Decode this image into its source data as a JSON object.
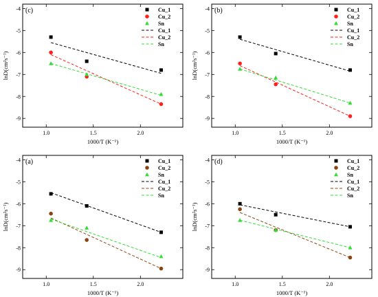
{
  "colors": {
    "Cu_1": "#000000",
    "Cu_2": "#ff1f1f",
    "Cu_2_alt": "#8b4513",
    "Sn": "#33dd33"
  },
  "chart_data": [
    {
      "type": "scatter",
      "panel_label": "(c)",
      "xlabel": "1000/T (K⁻¹)",
      "ylabel": "lnD(cm²s⁻¹)",
      "xlim": [
        0.75,
        2.45
      ],
      "ylim": [
        -9.4,
        -3.8
      ],
      "x_ticks": [
        "1.0",
        "1.5",
        "2.0"
      ],
      "y_ticks": [
        "-4",
        "-5",
        "-6",
        "-7",
        "-8",
        "-9"
      ],
      "legend": [
        "Cu_1",
        "Cu_2",
        "Sn",
        "Cu_1",
        "Cu_2",
        "Sn"
      ],
      "legend_position": "top-right",
      "series": [
        {
          "name": "Cu_1",
          "marker": "square",
          "color_key": "Cu_1",
          "x": [
            1.05,
            1.43,
            2.22
          ],
          "y": [
            -5.3,
            -6.4,
            -6.8
          ],
          "fit": [
            [
              1.05,
              -5.55
            ],
            [
              2.22,
              -6.95
            ]
          ]
        },
        {
          "name": "Cu_2",
          "marker": "circle",
          "color_key": "Cu_2",
          "x": [
            1.05,
            1.43,
            2.22
          ],
          "y": [
            -6.0,
            -7.1,
            -8.35
          ],
          "fit": [
            [
              1.05,
              -6.1
            ],
            [
              2.22,
              -8.35
            ]
          ]
        },
        {
          "name": "Sn",
          "marker": "triangle",
          "color_key": "Sn",
          "x": [
            1.05,
            1.43,
            2.22
          ],
          "y": [
            -6.5,
            -7.0,
            -7.9
          ],
          "fit": [
            [
              1.05,
              -6.5
            ],
            [
              2.22,
              -7.95
            ]
          ]
        }
      ]
    },
    {
      "type": "scatter",
      "panel_label": "(b)",
      "xlabel": "1000/T (K⁻¹)",
      "ylabel": "lnD(cm²s⁻¹)",
      "xlim": [
        0.75,
        2.45
      ],
      "ylim": [
        -9.4,
        -3.8
      ],
      "x_ticks": [
        "1.0",
        "1.5",
        "2.0"
      ],
      "y_ticks": [
        "-4",
        "-5",
        "-6",
        "-7",
        "-8",
        "-9"
      ],
      "legend": [
        "Cu_1",
        "Cu_2",
        "Sn",
        "Cu_1",
        "Cu_2",
        "Sn"
      ],
      "legend_position": "top-right",
      "series": [
        {
          "name": "Cu_1",
          "marker": "square",
          "color_key": "Cu_1",
          "x": [
            1.05,
            1.43,
            2.22
          ],
          "y": [
            -5.3,
            -6.05,
            -6.8
          ],
          "fit": [
            [
              1.05,
              -5.4
            ],
            [
              2.22,
              -6.85
            ]
          ]
        },
        {
          "name": "Cu_2",
          "marker": "circle",
          "color_key": "Cu_2",
          "x": [
            1.05,
            1.43,
            2.22
          ],
          "y": [
            -6.5,
            -7.45,
            -8.9
          ],
          "fit": [
            [
              1.05,
              -6.6
            ],
            [
              2.22,
              -8.9
            ]
          ]
        },
        {
          "name": "Sn",
          "marker": "triangle",
          "color_key": "Sn",
          "x": [
            1.05,
            1.43,
            2.22
          ],
          "y": [
            -6.75,
            -7.15,
            -8.3
          ],
          "fit": [
            [
              1.05,
              -6.75
            ],
            [
              2.22,
              -8.3
            ]
          ]
        }
      ]
    },
    {
      "type": "scatter",
      "panel_label": "(a)",
      "xlabel": "1000/T (K⁻¹)",
      "ylabel": "lnD(cm²s⁻¹)",
      "xlim": [
        0.75,
        2.45
      ],
      "ylim": [
        -9.4,
        -3.8
      ],
      "x_ticks": [
        "1.0",
        "1.5",
        "2.0"
      ],
      "y_ticks": [
        "-4",
        "-5",
        "-6",
        "-7",
        "-8",
        "-9"
      ],
      "legend": [
        "Cu_1",
        "Cu_2",
        "Sn",
        "Cu_1",
        "Cu_2",
        "Sn"
      ],
      "legend_position": "top-right",
      "series": [
        {
          "name": "Cu_1",
          "marker": "square",
          "color_key": "Cu_1",
          "x": [
            1.05,
            1.43,
            2.22
          ],
          "y": [
            -5.55,
            -6.1,
            -7.3
          ],
          "fit": [
            [
              1.05,
              -5.5
            ],
            [
              2.22,
              -7.3
            ]
          ]
        },
        {
          "name": "Cu_2",
          "marker": "circle",
          "color_key": "Cu_2_alt",
          "x": [
            1.05,
            1.43,
            2.22
          ],
          "y": [
            -6.45,
            -7.65,
            -8.95
          ],
          "fit": [
            [
              1.05,
              -6.65
            ],
            [
              2.22,
              -8.95
            ]
          ]
        },
        {
          "name": "Sn",
          "marker": "triangle",
          "color_key": "Sn",
          "x": [
            1.05,
            1.43,
            2.22
          ],
          "y": [
            -6.75,
            -7.1,
            -8.4
          ],
          "fit": [
            [
              1.05,
              -6.7
            ],
            [
              2.22,
              -8.45
            ]
          ]
        }
      ]
    },
    {
      "type": "scatter",
      "panel_label": "(d)",
      "xlabel": "1000/T (K⁻¹)",
      "ylabel": "lnD(cm²s⁻¹)",
      "xlim": [
        0.75,
        2.45
      ],
      "ylim": [
        -9.4,
        -3.8
      ],
      "x_ticks": [
        "1.0",
        "1.5",
        "2.0"
      ],
      "y_ticks": [
        "-4",
        "-5",
        "-6",
        "-7",
        "-8",
        "-9"
      ],
      "legend": [
        "Cu_1",
        "Cu_2",
        "Sn",
        "Cu_1",
        "Cu_2",
        "Sn"
      ],
      "legend_position": "top-right",
      "series": [
        {
          "name": "Cu_1",
          "marker": "square",
          "color_key": "Cu_1",
          "x": [
            1.05,
            1.43,
            2.22
          ],
          "y": [
            -6.0,
            -6.5,
            -7.05
          ],
          "fit": [
            [
              1.05,
              -6.05
            ],
            [
              2.22,
              -7.05
            ]
          ]
        },
        {
          "name": "Cu_2",
          "marker": "circle",
          "color_key": "Cu_2_alt",
          "x": [
            1.05,
            1.43,
            2.22
          ],
          "y": [
            -6.25,
            -7.2,
            -8.45
          ],
          "fit": [
            [
              1.05,
              -6.4
            ],
            [
              2.22,
              -8.45
            ]
          ]
        },
        {
          "name": "Sn",
          "marker": "triangle",
          "color_key": "Sn",
          "x": [
            1.05,
            1.43,
            2.22
          ],
          "y": [
            -6.75,
            -7.2,
            -8.0
          ],
          "fit": [
            [
              1.05,
              -6.75
            ],
            [
              2.22,
              -8.0
            ]
          ]
        }
      ]
    }
  ]
}
